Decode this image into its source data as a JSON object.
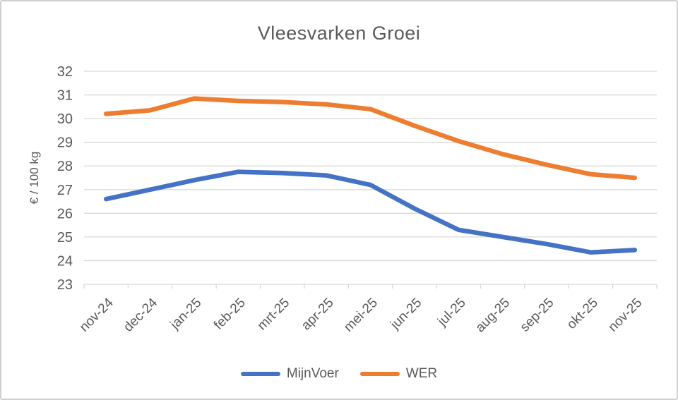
{
  "chart_data": {
    "type": "line",
    "title": "Vleesvarken Groei",
    "xlabel": "",
    "ylabel": "€ / 100 kg",
    "ylim": [
      23,
      32
    ],
    "ytick_step": 1,
    "grid": true,
    "legend_position": "bottom",
    "categories": [
      "nov-24",
      "dec-24",
      "jan-25",
      "feb-25",
      "mrt-25",
      "apr-25",
      "mei-25",
      "jun-25",
      "jul-25",
      "aug-25",
      "sep-25",
      "okt-25",
      "nov-25"
    ],
    "series": [
      {
        "name": "MijnVoer",
        "color": "#4472C4",
        "values": [
          26.6,
          27.0,
          27.4,
          27.75,
          27.7,
          27.6,
          27.2,
          26.2,
          25.3,
          25.0,
          24.7,
          24.35,
          24.45
        ]
      },
      {
        "name": "WER",
        "color": "#ED7D31",
        "values": [
          30.2,
          30.35,
          30.85,
          30.75,
          30.7,
          30.6,
          30.4,
          29.7,
          29.05,
          28.5,
          28.05,
          27.65,
          27.5
        ]
      }
    ]
  },
  "style_colors": {
    "gridline": "#D9D9D9",
    "tick": "#D9D9D9",
    "axis_text": "#595959",
    "title_text": "#595959",
    "frame_border": "#CFCFCF"
  }
}
